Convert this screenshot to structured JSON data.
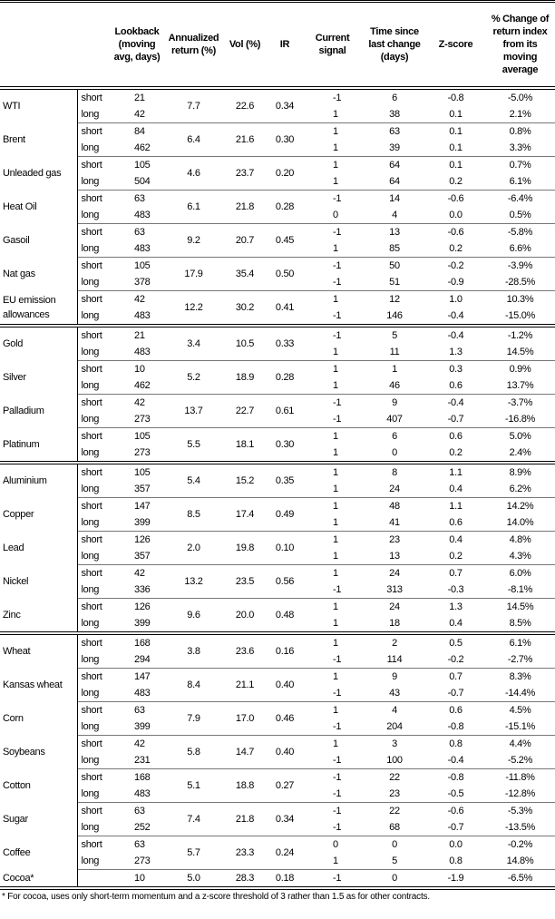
{
  "headers": [
    "",
    "",
    "Lookback (moving avg, days)",
    "Annualized return (%)",
    "Vol (%)",
    "IR",
    "Current signal",
    "Time since last change (days)",
    "Z-score",
    "% Change of return index from its moving average"
  ],
  "groups": [
    [
      {
        "name": "WTI",
        "ann": "7.7",
        "vol": "22.6",
        "ir": "0.34",
        "rows": [
          {
            "term": "short",
            "lb": "21",
            "sig": "-1",
            "time": "6",
            "z": "-0.8",
            "pct": "-5.0%"
          },
          {
            "term": "long",
            "lb": "42",
            "sig": "1",
            "time": "38",
            "z": "0.1",
            "pct": "2.1%"
          }
        ]
      },
      {
        "name": "Brent",
        "ann": "6.4",
        "vol": "21.6",
        "ir": "0.30",
        "rows": [
          {
            "term": "short",
            "lb": "84",
            "sig": "1",
            "time": "63",
            "z": "0.1",
            "pct": "0.8%"
          },
          {
            "term": "long",
            "lb": "462",
            "sig": "1",
            "time": "39",
            "z": "0.1",
            "pct": "3.3%"
          }
        ]
      },
      {
        "name": "Unleaded gas",
        "ann": "4.6",
        "vol": "23.7",
        "ir": "0.20",
        "rows": [
          {
            "term": "short",
            "lb": "105",
            "sig": "1",
            "time": "64",
            "z": "0.1",
            "pct": "0.7%"
          },
          {
            "term": "long",
            "lb": "504",
            "sig": "1",
            "time": "64",
            "z": "0.2",
            "pct": "6.1%"
          }
        ]
      },
      {
        "name": "Heat Oil",
        "ann": "6.1",
        "vol": "21.8",
        "ir": "0.28",
        "rows": [
          {
            "term": "short",
            "lb": "63",
            "sig": "-1",
            "time": "14",
            "z": "-0.6",
            "pct": "-6.4%"
          },
          {
            "term": "long",
            "lb": "483",
            "sig": "0",
            "time": "4",
            "z": "0.0",
            "pct": "0.5%"
          }
        ]
      },
      {
        "name": "Gasoil",
        "ann": "9.2",
        "vol": "20.7",
        "ir": "0.45",
        "rows": [
          {
            "term": "short",
            "lb": "63",
            "sig": "-1",
            "time": "13",
            "z": "-0.6",
            "pct": "-5.8%"
          },
          {
            "term": "long",
            "lb": "483",
            "sig": "1",
            "time": "85",
            "z": "0.2",
            "pct": "6.6%"
          }
        ]
      },
      {
        "name": "Nat gas",
        "ann": "17.9",
        "vol": "35.4",
        "ir": "0.50",
        "rows": [
          {
            "term": "short",
            "lb": "105",
            "sig": "-1",
            "time": "50",
            "z": "-0.2",
            "pct": "-3.9%"
          },
          {
            "term": "long",
            "lb": "378",
            "sig": "-1",
            "time": "51",
            "z": "-0.9",
            "pct": "-28.5%"
          }
        ]
      },
      {
        "name": "EU emission allowances",
        "ann": "12.2",
        "vol": "30.2",
        "ir": "0.41",
        "rows": [
          {
            "term": "short",
            "lb": "42",
            "sig": "1",
            "time": "12",
            "z": "1.0",
            "pct": "10.3%"
          },
          {
            "term": "long",
            "lb": "483",
            "sig": "-1",
            "time": "146",
            "z": "-0.4",
            "pct": "-15.0%"
          }
        ]
      }
    ],
    [
      {
        "name": "Gold",
        "ann": "3.4",
        "vol": "10.5",
        "ir": "0.33",
        "rows": [
          {
            "term": "short",
            "lb": "21",
            "sig": "-1",
            "time": "5",
            "z": "-0.4",
            "pct": "-1.2%"
          },
          {
            "term": "long",
            "lb": "483",
            "sig": "1",
            "time": "11",
            "z": "1.3",
            "pct": "14.5%"
          }
        ]
      },
      {
        "name": "Silver",
        "ann": "5.2",
        "vol": "18.9",
        "ir": "0.28",
        "rows": [
          {
            "term": "short",
            "lb": "10",
            "sig": "1",
            "time": "1",
            "z": "0.3",
            "pct": "0.9%"
          },
          {
            "term": "long",
            "lb": "462",
            "sig": "1",
            "time": "46",
            "z": "0.6",
            "pct": "13.7%"
          }
        ]
      },
      {
        "name": "Palladium",
        "ann": "13.7",
        "vol": "22.7",
        "ir": "0.61",
        "rows": [
          {
            "term": "short",
            "lb": "42",
            "sig": "-1",
            "time": "9",
            "z": "-0.4",
            "pct": "-3.7%"
          },
          {
            "term": "long",
            "lb": "273",
            "sig": "-1",
            "time": "407",
            "z": "-0.7",
            "pct": "-16.8%"
          }
        ]
      },
      {
        "name": "Platinum",
        "ann": "5.5",
        "vol": "18.1",
        "ir": "0.30",
        "rows": [
          {
            "term": "short",
            "lb": "105",
            "sig": "1",
            "time": "6",
            "z": "0.6",
            "pct": "5.0%"
          },
          {
            "term": "long",
            "lb": "273",
            "sig": "1",
            "time": "0",
            "z": "0.2",
            "pct": "2.4%"
          }
        ]
      }
    ],
    [
      {
        "name": "Aluminium",
        "ann": "5.4",
        "vol": "15.2",
        "ir": "0.35",
        "rows": [
          {
            "term": "short",
            "lb": "105",
            "sig": "1",
            "time": "8",
            "z": "1.1",
            "pct": "8.9%"
          },
          {
            "term": "long",
            "lb": "357",
            "sig": "1",
            "time": "24",
            "z": "0.4",
            "pct": "6.2%"
          }
        ]
      },
      {
        "name": "Copper",
        "ann": "8.5",
        "vol": "17.4",
        "ir": "0.49",
        "rows": [
          {
            "term": "short",
            "lb": "147",
            "sig": "1",
            "time": "48",
            "z": "1.1",
            "pct": "14.2%"
          },
          {
            "term": "long",
            "lb": "399",
            "sig": "1",
            "time": "41",
            "z": "0.6",
            "pct": "14.0%"
          }
        ]
      },
      {
        "name": "Lead",
        "ann": "2.0",
        "vol": "19.8",
        "ir": "0.10",
        "rows": [
          {
            "term": "short",
            "lb": "126",
            "sig": "1",
            "time": "23",
            "z": "0.4",
            "pct": "4.8%"
          },
          {
            "term": "long",
            "lb": "357",
            "sig": "1",
            "time": "13",
            "z": "0.2",
            "pct": "4.3%"
          }
        ]
      },
      {
        "name": "Nickel",
        "ann": "13.2",
        "vol": "23.5",
        "ir": "0.56",
        "rows": [
          {
            "term": "short",
            "lb": "42",
            "sig": "1",
            "time": "24",
            "z": "0.7",
            "pct": "6.0%"
          },
          {
            "term": "long",
            "lb": "336",
            "sig": "-1",
            "time": "313",
            "z": "-0.3",
            "pct": "-8.1%"
          }
        ]
      },
      {
        "name": "Zinc",
        "ann": "9.6",
        "vol": "20.0",
        "ir": "0.48",
        "rows": [
          {
            "term": "short",
            "lb": "126",
            "sig": "1",
            "time": "24",
            "z": "1.3",
            "pct": "14.5%"
          },
          {
            "term": "long",
            "lb": "399",
            "sig": "1",
            "time": "18",
            "z": "0.4",
            "pct": "8.5%"
          }
        ]
      }
    ],
    [
      {
        "name": "Wheat",
        "ann": "3.8",
        "vol": "23.6",
        "ir": "0.16",
        "rows": [
          {
            "term": "short",
            "lb": "168",
            "sig": "1",
            "time": "2",
            "z": "0.5",
            "pct": "6.1%"
          },
          {
            "term": "long",
            "lb": "294",
            "sig": "-1",
            "time": "114",
            "z": "-0.2",
            "pct": "-2.7%"
          }
        ]
      },
      {
        "name": "Kansas wheat",
        "ann": "8.4",
        "vol": "21.1",
        "ir": "0.40",
        "rows": [
          {
            "term": "short",
            "lb": "147",
            "sig": "1",
            "time": "9",
            "z": "0.7",
            "pct": "8.3%"
          },
          {
            "term": "long",
            "lb": "483",
            "sig": "-1",
            "time": "43",
            "z": "-0.7",
            "pct": "-14.4%"
          }
        ]
      },
      {
        "name": "Corn",
        "ann": "7.9",
        "vol": "17.0",
        "ir": "0.46",
        "rows": [
          {
            "term": "short",
            "lb": "63",
            "sig": "1",
            "time": "4",
            "z": "0.6",
            "pct": "4.5%"
          },
          {
            "term": "long",
            "lb": "399",
            "sig": "-1",
            "time": "204",
            "z": "-0.8",
            "pct": "-15.1%"
          }
        ]
      },
      {
        "name": "Soybeans",
        "ann": "5.8",
        "vol": "14.7",
        "ir": "0.40",
        "rows": [
          {
            "term": "short",
            "lb": "42",
            "sig": "1",
            "time": "3",
            "z": "0.8",
            "pct": "4.4%"
          },
          {
            "term": "long",
            "lb": "231",
            "sig": "-1",
            "time": "100",
            "z": "-0.4",
            "pct": "-5.2%"
          }
        ]
      },
      {
        "name": "Cotton",
        "ann": "5.1",
        "vol": "18.8",
        "ir": "0.27",
        "rows": [
          {
            "term": "short",
            "lb": "168",
            "sig": "-1",
            "time": "22",
            "z": "-0.8",
            "pct": "-11.8%"
          },
          {
            "term": "long",
            "lb": "483",
            "sig": "-1",
            "time": "23",
            "z": "-0.5",
            "pct": "-12.8%"
          }
        ]
      },
      {
        "name": "Sugar",
        "ann": "7.4",
        "vol": "21.8",
        "ir": "0.34",
        "rows": [
          {
            "term": "short",
            "lb": "63",
            "sig": "-1",
            "time": "22",
            "z": "-0.6",
            "pct": "-5.3%"
          },
          {
            "term": "long",
            "lb": "252",
            "sig": "-1",
            "time": "68",
            "z": "-0.7",
            "pct": "-13.5%"
          }
        ]
      },
      {
        "name": "Coffee",
        "ann": "5.7",
        "vol": "23.3",
        "ir": "0.24",
        "rows": [
          {
            "term": "short",
            "lb": "63",
            "sig": "0",
            "time": "0",
            "z": "0.0",
            "pct": "-0.2%"
          },
          {
            "term": "long",
            "lb": "273",
            "sig": "1",
            "time": "5",
            "z": "0.8",
            "pct": "14.8%"
          }
        ]
      },
      {
        "name": "Cocoa*",
        "ann": "5.0",
        "vol": "28.3",
        "ir": "0.18",
        "rows": [
          {
            "term": "",
            "lb": "10",
            "sig": "-1",
            "time": "0",
            "z": "-1.9",
            "pct": "-6.5%"
          }
        ]
      }
    ]
  ],
  "footnote": "* For cocoa, uses only short-term momentum and a z-score threshold of 3 rather than 1.5 as for other contracts."
}
